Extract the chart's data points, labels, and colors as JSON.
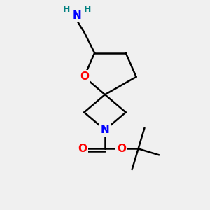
{
  "background_color": "#f0f0f0",
  "atom_colors": {
    "C": "#000000",
    "N": "#0000ff",
    "O": "#ff0000",
    "H": "#008080"
  },
  "bond_width": 1.8,
  "font_size_atom": 11,
  "font_size_H": 9
}
